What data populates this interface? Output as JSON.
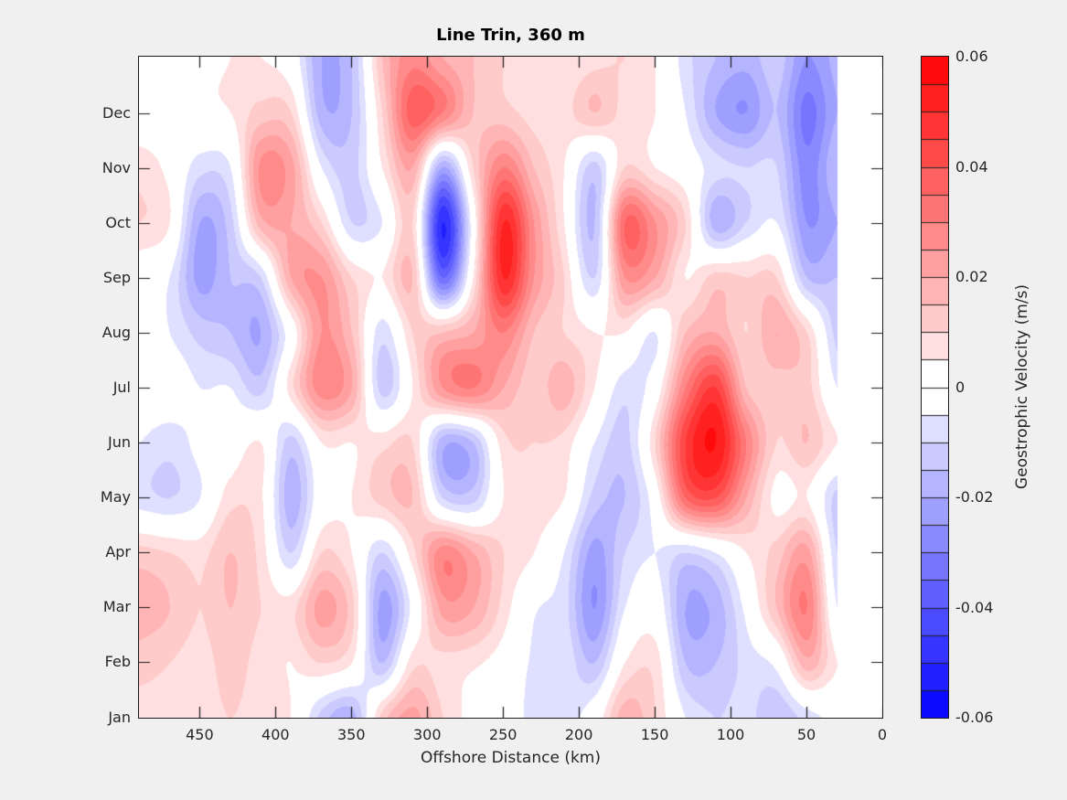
{
  "figure": {
    "background": "#F0F0F0",
    "axis_color": "#262626",
    "box_color": "#1a1a1a"
  },
  "chart_data": {
    "type": "filled_contour",
    "title": "Line Trin, 360 m",
    "xlabel": "Offshore Distance (km)",
    "x_axis": {
      "tick_labels": [
        "450",
        "400",
        "350",
        "300",
        "250",
        "200",
        "150",
        "100",
        "50",
        "0"
      ],
      "tick_values_km": [
        450,
        400,
        350,
        300,
        250,
        200,
        150,
        100,
        50,
        0
      ],
      "axis_range_km": [
        490,
        0
      ],
      "data_extent_km": [
        490,
        30
      ],
      "direction": "reversed"
    },
    "y_axis": {
      "tick_labels_top_to_bottom": [
        "Dec",
        "Nov",
        "Oct",
        "Sep",
        "Aug",
        "Jul",
        "Jun",
        "May",
        "Apr",
        "Mar",
        "Feb",
        "Jan"
      ],
      "month_span": [
        1,
        13
      ]
    },
    "colorbar": {
      "label": "Geostrophic Velocity (m/s)",
      "tick_labels": [
        "0.06",
        "0.04",
        "0.02",
        "0",
        "-0.02",
        "-0.04",
        "-0.06"
      ],
      "tick_values": [
        0.06,
        0.04,
        0.02,
        0,
        -0.02,
        -0.04,
        -0.06
      ],
      "vmin": -0.06,
      "vmax": 0.06,
      "level_step": 0.005,
      "n_levels": 24,
      "positive_color": "#FF0000",
      "zero_color": "#FFFFFF",
      "negative_color": "#0000FF"
    },
    "grid": {
      "x_km": [
        490,
        470,
        450,
        430,
        410,
        390,
        370,
        350,
        330,
        310,
        290,
        270,
        250,
        230,
        210,
        190,
        170,
        150,
        130,
        110,
        90,
        70,
        50,
        30
      ],
      "rows_bottom_to_top": [
        "Jan",
        "Feb",
        "Mar",
        "Apr",
        "May",
        "Jun",
        "Jul",
        "Aug",
        "Sep",
        "Oct",
        "Nov",
        "Dec",
        "Jan+"
      ],
      "values_unit": "0.001 m/s",
      "values": [
        [
          8,
          8,
          8,
          10,
          8,
          5,
          -12,
          -18,
          12,
          22,
          10,
          3,
          2,
          -8,
          -8,
          0,
          18,
          10,
          -5,
          -10,
          -8,
          -15,
          -8,
          -3
        ],
        [
          12,
          10,
          8,
          12,
          8,
          5,
          10,
          5,
          -15,
          8,
          8,
          6,
          2,
          -6,
          -6,
          -15,
          5,
          8,
          -15,
          -15,
          -8,
          -3,
          18,
          5
        ],
        [
          18,
          15,
          10,
          15,
          10,
          8,
          22,
          12,
          -22,
          -3,
          22,
          20,
          8,
          -4,
          -8,
          -25,
          -5,
          0,
          -20,
          -18,
          -3,
          15,
          30,
          -5
        ],
        [
          12,
          10,
          8,
          15,
          8,
          -10,
          10,
          5,
          -10,
          8,
          28,
          20,
          10,
          5,
          -5,
          -22,
          -10,
          -5,
          -10,
          -5,
          5,
          12,
          22,
          -10
        ],
        [
          -8,
          -10,
          -5,
          8,
          6,
          -18,
          0,
          5,
          12,
          15,
          -10,
          -12,
          5,
          8,
          5,
          -12,
          -15,
          0,
          35,
          40,
          20,
          3,
          5,
          -12
        ],
        [
          -5,
          -8,
          -3,
          0,
          5,
          -12,
          5,
          5,
          8,
          10,
          -18,
          -15,
          8,
          10,
          8,
          -5,
          -12,
          10,
          45,
          55,
          30,
          10,
          15,
          5
        ],
        [
          0,
          0,
          -5,
          -5,
          -12,
          8,
          28,
          20,
          -12,
          5,
          25,
          30,
          20,
          12,
          18,
          5,
          -8,
          0,
          30,
          45,
          15,
          12,
          12,
          -5
        ],
        [
          0,
          -5,
          -12,
          -15,
          -20,
          0,
          25,
          15,
          -8,
          10,
          15,
          20,
          30,
          15,
          10,
          5,
          5,
          -5,
          15,
          20,
          10,
          20,
          10,
          -12
        ],
        [
          0,
          -5,
          -22,
          -15,
          -10,
          20,
          25,
          10,
          5,
          15,
          -35,
          5,
          50,
          25,
          10,
          -10,
          25,
          20,
          5,
          12,
          10,
          10,
          -15,
          -15
        ],
        [
          10,
          5,
          -20,
          -12,
          18,
          20,
          10,
          -10,
          -5,
          10,
          -50,
          0,
          50,
          25,
          5,
          -15,
          35,
          25,
          10,
          -18,
          -10,
          -5,
          -25,
          -20
        ],
        [
          8,
          3,
          -8,
          -5,
          26,
          22,
          -5,
          -12,
          5,
          20,
          -20,
          10,
          30,
          15,
          5,
          -12,
          10,
          5,
          0,
          -8,
          -10,
          -10,
          -28,
          -15
        ],
        [
          0,
          0,
          3,
          5,
          12,
          10,
          -18,
          -15,
          10,
          38,
          30,
          15,
          12,
          8,
          8,
          15,
          8,
          5,
          -5,
          -20,
          -25,
          -15,
          -32,
          -20
        ],
        [
          0,
          0,
          3,
          5,
          5,
          0,
          -20,
          -15,
          15,
          28,
          20,
          15,
          10,
          8,
          5,
          8,
          10,
          5,
          -8,
          -15,
          -18,
          -12,
          -25,
          -18
        ]
      ]
    },
    "layout": {
      "grid_lines": false,
      "legend": "colorbar-right"
    }
  }
}
